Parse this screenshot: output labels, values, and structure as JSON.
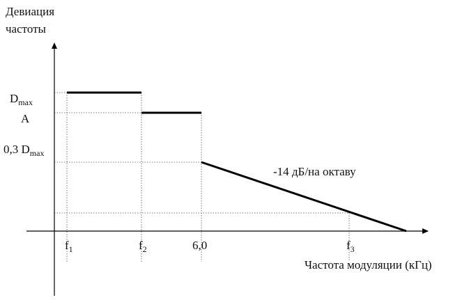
{
  "y_axis_title": [
    "Девиация",
    "частоты"
  ],
  "y_labels": [
    {
      "main": "D",
      "sub": "max"
    },
    {
      "main": "A"
    },
    {
      "main": "0,3 D",
      "sub": "max"
    }
  ],
  "slope_label": "-14 дБ/на октаву",
  "x_labels": [
    {
      "main": "f",
      "sub": "1"
    },
    {
      "main": "f",
      "sub": "2"
    },
    {
      "main": "6,0"
    },
    {
      "main": "f",
      "sub": "3"
    }
  ],
  "x_axis_title": "Частота модуляции (кГц)"
}
